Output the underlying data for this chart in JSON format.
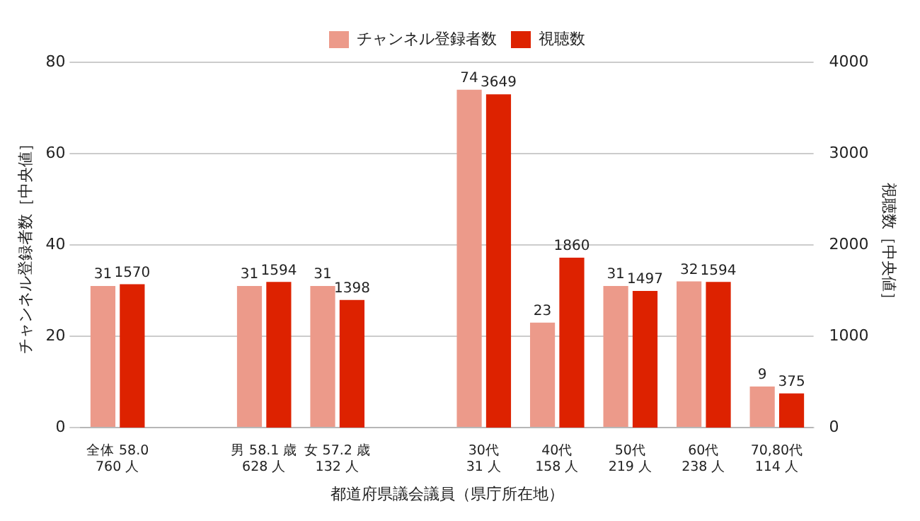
{
  "chart_data": {
    "type": "bar",
    "xlabel": "都道府県議会議員（県庁所在地）",
    "ylabel": "チャンネル登録者数［中央値］",
    "y2label": "視聴数［中央値］",
    "categories": [
      "全体 58.0\n760 人",
      null,
      "男 58.1 歳\n628 人",
      "女 57.2 歳\n132 人",
      null,
      "30代\n31 人",
      "40代\n158 人",
      "50代\n219 人",
      "60代\n238 人",
      "70,80代\n114 人"
    ],
    "series": [
      {
        "name": "チャンネル登録者数",
        "color": "#ec9a8a",
        "values": [
          31,
          null,
          31,
          31,
          null,
          74,
          23,
          31,
          32,
          9
        ]
      },
      {
        "name": "視聴数",
        "color": "#dd2200",
        "axis": "y2",
        "values": [
          1570,
          null,
          1594,
          1398,
          null,
          3649,
          1860,
          1497,
          1594,
          375
        ]
      }
    ],
    "ylim": [
      0,
      80
    ],
    "yticks": [
      0,
      20,
      40,
      60,
      80
    ],
    "y2lim": [
      0,
      4000
    ],
    "y2ticks": [
      0,
      1000,
      2000,
      3000,
      4000
    ],
    "grid": "y",
    "legend": "top",
    "data_labels": true
  }
}
